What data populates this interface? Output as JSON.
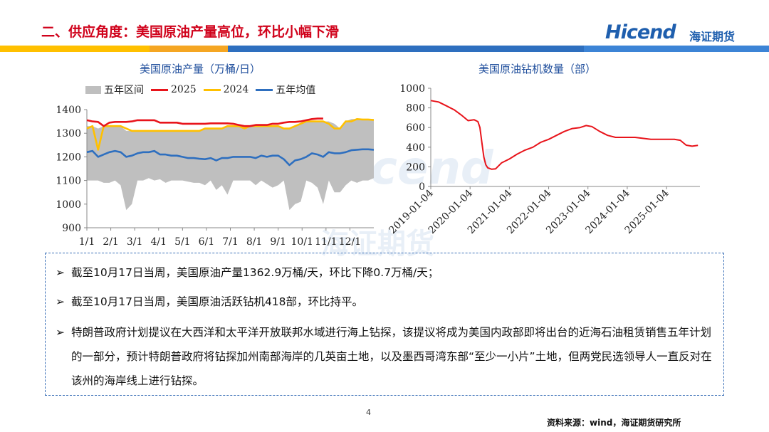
{
  "header": {
    "title": "二、供应角度：美国原油产量高位，环比小幅下滑",
    "logo_text": "Hicend",
    "logo_cn": "海证期货"
  },
  "colors": {
    "red": "#e8141b",
    "yellow": "#ffc000",
    "blue": "#2e6fbf",
    "grey": "#bfbfbf",
    "orange": "#f5a623"
  },
  "watermark": {
    "brand": "cend",
    "cn": "海证期货"
  },
  "chart_data": [
    {
      "type": "line",
      "title": "美国原油产量（万桶/日）",
      "legend": [
        "五年区间",
        "2025",
        "2024",
        "五年均值"
      ],
      "legend_position": "top",
      "x_ticks": [
        "1/1",
        "2/1",
        "3/1",
        "4/1",
        "5/1",
        "6/1",
        "7/1",
        "8/1",
        "9/1",
        "10/1",
        "11/1",
        "12/1"
      ],
      "y_ticks": [
        "900",
        "1000",
        "1100",
        "1200",
        "1300",
        "1400"
      ],
      "ylim": [
        900,
        1400
      ],
      "week_count": 52,
      "range_low": [
        1100,
        1100,
        1100,
        1090,
        1090,
        1100,
        1080,
        975,
        1000,
        1100,
        1100,
        1110,
        1100,
        1105,
        1090,
        1100,
        1100,
        1100,
        1095,
        1090,
        1090,
        1080,
        1100,
        1060,
        1080,
        1040,
        1100,
        1100,
        1100,
        1100,
        1080,
        1100,
        1085,
        1070,
        1080,
        1100,
        975,
        1000,
        1010,
        1100,
        1090,
        1070,
        1000,
        1100,
        1050,
        1050,
        1080,
        1100,
        1090,
        1100,
        1100,
        1110
      ],
      "range_high": [
        1330,
        1330,
        1320,
        1330,
        1330,
        1330,
        1330,
        1310,
        1310,
        1310,
        1310,
        1310,
        1310,
        1310,
        1310,
        1310,
        1310,
        1310,
        1310,
        1310,
        1310,
        1320,
        1320,
        1320,
        1320,
        1330,
        1330,
        1330,
        1330,
        1330,
        1330,
        1330,
        1330,
        1330,
        1330,
        1320,
        1320,
        1330,
        1340,
        1350,
        1350,
        1350,
        1350,
        1350,
        1340,
        1320,
        1350,
        1360,
        1360,
        1360,
        1360,
        1360
      ],
      "series": [
        {
          "name": "2025",
          "values": [
            1355,
            1350,
            1348,
            1330,
            1345,
            1348,
            1348,
            1348,
            1350,
            1355,
            1355,
            1355,
            1355,
            1345,
            1345,
            1345,
            1345,
            1340,
            1340,
            1340,
            1340,
            1340,
            1342,
            1342,
            1342,
            1342,
            1340,
            1335,
            1330,
            1330,
            1335,
            1335,
            1335,
            1340,
            1340,
            1345,
            1348,
            1348,
            1350,
            1355,
            1360,
            1362,
            1362
          ]
        },
        {
          "name": "2024",
          "values": [
            1320,
            1330,
            1230,
            1330,
            1330,
            1330,
            1330,
            1320,
            1310,
            1310,
            1310,
            1310,
            1310,
            1310,
            1310,
            1310,
            1310,
            1310,
            1310,
            1310,
            1310,
            1320,
            1320,
            1320,
            1320,
            1330,
            1330,
            1330,
            1320,
            1330,
            1330,
            1330,
            1330,
            1330,
            1330,
            1320,
            1320,
            1330,
            1340,
            1350,
            1350,
            1350,
            1350,
            1340,
            1320,
            1320,
            1350,
            1350,
            1360,
            1358,
            1358,
            1356
          ]
        },
        {
          "name": "五年均值",
          "values": [
            1220,
            1225,
            1200,
            1210,
            1220,
            1225,
            1220,
            1200,
            1205,
            1215,
            1220,
            1220,
            1225,
            1210,
            1210,
            1205,
            1205,
            1200,
            1195,
            1195,
            1192,
            1190,
            1195,
            1185,
            1195,
            1195,
            1200,
            1200,
            1200,
            1200,
            1195,
            1205,
            1200,
            1205,
            1205,
            1190,
            1165,
            1185,
            1190,
            1200,
            1215,
            1210,
            1200,
            1220,
            1215,
            1215,
            1220,
            1228,
            1230,
            1232,
            1232,
            1230
          ]
        }
      ]
    },
    {
      "type": "line",
      "title": "美国原油钻机数量（部）",
      "x_ticks": [
        "2019-01-04",
        "2020-01-04",
        "2021-01-04",
        "2022-01-04",
        "2023-01-04",
        "2024-01-04",
        "2025-01-04"
      ],
      "y_ticks": [
        "0",
        "200",
        "400",
        "600",
        "800",
        "1000"
      ],
      "ylim": [
        0,
        1000
      ],
      "x_range": [
        2019.0,
        2025.85
      ],
      "series": [
        {
          "name": "",
          "x": [
            2019.0,
            2019.2,
            2019.4,
            2019.6,
            2019.8,
            2019.95,
            2020.1,
            2020.2,
            2020.25,
            2020.3,
            2020.35,
            2020.4,
            2020.45,
            2020.55,
            2020.65,
            2020.8,
            2021.0,
            2021.2,
            2021.4,
            2021.6,
            2021.8,
            2022.0,
            2022.2,
            2022.4,
            2022.6,
            2022.8,
            2022.95,
            2023.1,
            2023.3,
            2023.5,
            2023.7,
            2023.9,
            2024.0,
            2024.2,
            2024.4,
            2024.6,
            2024.8,
            2025.0,
            2025.2,
            2025.35,
            2025.5,
            2025.65,
            2025.8
          ],
          "values": [
            875,
            860,
            820,
            780,
            720,
            670,
            680,
            660,
            600,
            450,
            300,
            220,
            190,
            175,
            180,
            240,
            280,
            330,
            370,
            400,
            450,
            480,
            520,
            560,
            590,
            600,
            620,
            610,
            560,
            520,
            500,
            500,
            500,
            500,
            490,
            480,
            480,
            480,
            480,
            470,
            420,
            410,
            418
          ]
        }
      ]
    }
  ],
  "notes": [
    "截至10月17日当周，美国原油产量1362.9万桶/天，环比下降0.7万桶/天；",
    "截至10月17日当周，美国原油活跃钻机418部，环比持平。",
    "特朗普政府计划提议在大西洋和太平洋开放联邦水域进行海上钻探，该提议将成为美国内政部即将出台的近海石油租赁销售五年计划的一部分，预计特朗普政府将钻探加州南部海岸的几英亩土地，以及墨西哥湾东部“至少一小片”土地，但两党民选领导人一直反对在该州的海岸线上进行钻探。"
  ],
  "bullet_symbol": "➢",
  "footer": {
    "page_number": "4",
    "source": "资料来源：wind，海证期货研究所"
  }
}
